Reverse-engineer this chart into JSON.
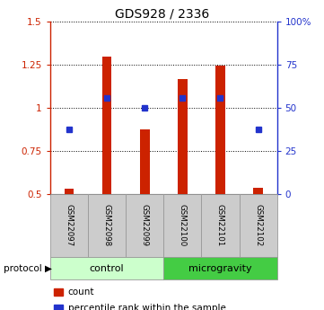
{
  "title": "GDS928 / 2336",
  "samples": [
    "GSM22097",
    "GSM22098",
    "GSM22099",
    "GSM22100",
    "GSM22101",
    "GSM22102"
  ],
  "bar_tops": [
    0.527,
    1.295,
    0.875,
    1.165,
    1.245,
    0.535
  ],
  "bar_base": 0.5,
  "bar_color": "#cc2200",
  "blue_markers": [
    0.875,
    1.055,
    1.0,
    1.055,
    1.055,
    0.875
  ],
  "marker_color": "#2233cc",
  "ylim_left": [
    0.5,
    1.5
  ],
  "ylim_right": [
    0,
    100
  ],
  "yticks_left": [
    0.5,
    0.75,
    1.0,
    1.25,
    1.5
  ],
  "ytick_labels_left": [
    "0.5",
    "0.75",
    "1",
    "1.25",
    "1.5"
  ],
  "yticks_right": [
    0,
    25,
    50,
    75,
    100
  ],
  "ytick_labels_right": [
    "0",
    "25",
    "50",
    "75",
    "100%"
  ],
  "protocol_labels": [
    "control",
    "microgravity"
  ],
  "protocol_groups": [
    3,
    3
  ],
  "protocol_colors_light": "#ccffcc",
  "protocol_colors_dark": "#44cc44",
  "label_box_color": "#cccccc",
  "legend_items": [
    {
      "label": "count",
      "color": "#cc2200"
    },
    {
      "label": "percentile rank within the sample",
      "color": "#2233cc"
    }
  ],
  "bar_width": 0.25
}
